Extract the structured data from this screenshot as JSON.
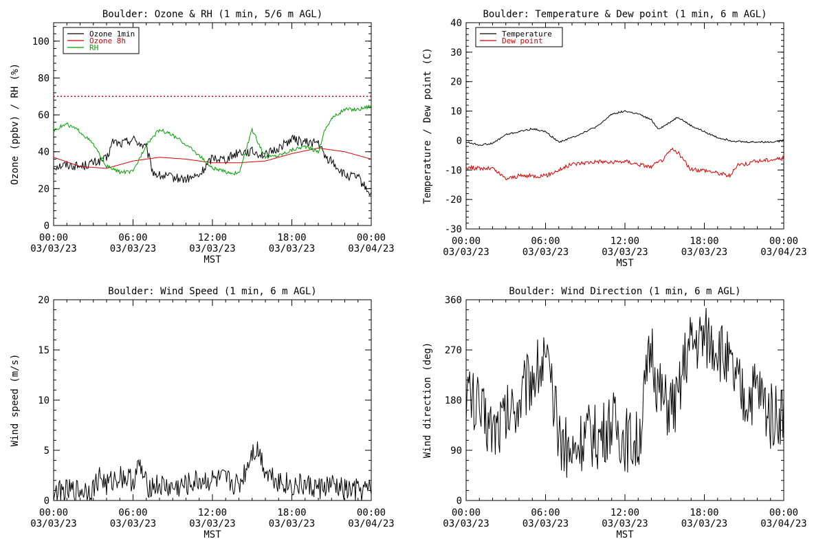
{
  "x_axis": {
    "label": "MST",
    "ticks": [
      {
        "time": "00:00",
        "date": "03/03/23"
      },
      {
        "time": "06:00",
        "date": "03/03/23"
      },
      {
        "time": "12:00",
        "date": "03/03/23"
      },
      {
        "time": "18:00",
        "date": "03/03/23"
      },
      {
        "time": "00:00",
        "date": "03/04/23"
      }
    ]
  },
  "chart_data": [
    {
      "type": "line",
      "title": "Boulder: Ozone & RH (1 min, 5/6 m AGL)",
      "ylabel": "Ozone (ppbv) / RH (%)",
      "ylim": [
        0,
        110
      ],
      "yticks": [
        0,
        20,
        40,
        60,
        80,
        100
      ],
      "xlim_hours": [
        0,
        24
      ],
      "legend": "top-left",
      "reference_line": {
        "y": 70,
        "color": "#d40000",
        "style": "dotted"
      },
      "series": [
        {
          "name": "Ozone 1min",
          "color": "#000000",
          "noise": 2.5,
          "x": [
            0,
            1,
            2,
            3,
            4,
            4.5,
            5,
            6,
            7,
            7.5,
            8,
            9,
            10,
            11,
            12,
            13,
            14,
            15,
            16,
            17,
            18,
            19,
            20,
            20.5,
            21,
            22,
            23,
            23.5,
            24
          ],
          "y": [
            32,
            33,
            32,
            34,
            36,
            46,
            44,
            47,
            42,
            29,
            27,
            26,
            25,
            27,
            37,
            36,
            40,
            40,
            38,
            42,
            47,
            45,
            45,
            37,
            35,
            27,
            26,
            21,
            17
          ]
        },
        {
          "name": "Ozone 8h",
          "color": "#d40000",
          "noise": 0,
          "x": [
            0,
            2,
            4,
            6,
            8,
            10,
            12,
            14,
            16,
            18,
            20,
            22,
            24
          ],
          "y": [
            37,
            32,
            31,
            35,
            37,
            36,
            34,
            34,
            35,
            39,
            42,
            40,
            36
          ]
        },
        {
          "name": "RH",
          "color": "#00a000",
          "noise": 1,
          "x": [
            0,
            1,
            2,
            3,
            4,
            5,
            6,
            7,
            8,
            9,
            10,
            11,
            12,
            13,
            14,
            15,
            16,
            17,
            18,
            19,
            20,
            20.5,
            21,
            22,
            23,
            24
          ],
          "y": [
            52,
            55,
            51,
            44,
            32,
            29,
            29,
            44,
            52,
            49,
            44,
            38,
            31,
            29,
            28,
            52,
            37,
            38,
            41,
            43,
            40,
            52,
            58,
            63,
            63,
            65
          ]
        }
      ]
    },
    {
      "type": "line",
      "title": "Boulder: Temperature & Dew point (1 min, 6 m AGL)",
      "ylabel": "Temperature / Dew point (C)",
      "ylim": [
        -30,
        40
      ],
      "yticks": [
        -30,
        -20,
        -10,
        0,
        10,
        20,
        30,
        40
      ],
      "xlim_hours": [
        0,
        24
      ],
      "legend": "top-left",
      "series": [
        {
          "name": "Temperature",
          "color": "#000000",
          "noise": 0.3,
          "x": [
            0,
            1,
            2,
            3,
            4,
            5,
            6,
            7,
            8,
            9,
            10,
            11,
            12,
            13,
            14,
            14.5,
            15,
            16,
            17,
            18,
            19,
            20,
            21,
            22,
            23,
            24
          ],
          "y": [
            -0.5,
            -1.5,
            -1,
            2,
            3,
            4,
            3,
            -0.5,
            1,
            3,
            5,
            9,
            10,
            9,
            7,
            4,
            5,
            8,
            5,
            3,
            1,
            0,
            -0.5,
            -0.5,
            -0.5,
            0
          ]
        },
        {
          "name": "Dew point",
          "color": "#d40000",
          "noise": 0.7,
          "x": [
            0,
            1,
            2,
            3,
            4,
            5,
            6,
            7,
            8,
            9,
            10,
            11,
            12,
            13,
            14,
            15,
            15.5,
            16,
            17,
            18,
            19,
            20,
            20.5,
            21,
            22,
            23,
            24
          ],
          "y": [
            -9,
            -9.5,
            -9.5,
            -13,
            -12,
            -12,
            -12,
            -10,
            -8,
            -7.5,
            -7,
            -7.5,
            -7,
            -8,
            -9,
            -6,
            -3,
            -4,
            -10,
            -10,
            -11,
            -12,
            -8,
            -8,
            -7,
            -6.5,
            -6
          ]
        }
      ]
    },
    {
      "type": "line",
      "title": "Boulder: Wind Speed (1 min, 6 m AGL)",
      "ylabel": "Wind speed (m/s)",
      "ylim": [
        0,
        20
      ],
      "yticks": [
        0,
        5,
        10,
        15,
        20
      ],
      "xlim_hours": [
        0,
        24
      ],
      "series": [
        {
          "color": "#000000",
          "noise": 1.2,
          "x": [
            0,
            2,
            3,
            3.5,
            4,
            5,
            6,
            6.5,
            7,
            8,
            9,
            10,
            11,
            12,
            13,
            14,
            14.5,
            15,
            15.5,
            16,
            17,
            18,
            19,
            20,
            21,
            22,
            23,
            24
          ],
          "y": [
            0.8,
            1,
            1.2,
            2.5,
            1.5,
            2.5,
            2,
            3.5,
            1.5,
            1.5,
            1.2,
            1.5,
            2,
            2,
            2,
            1.5,
            3,
            5,
            5,
            3,
            2,
            1.5,
            1.5,
            1.2,
            1.5,
            1,
            1,
            1
          ]
        }
      ]
    },
    {
      "type": "line",
      "title": "Boulder: Wind Direction (1 min, 6 m AGL)",
      "ylabel": "Wind direction (deg)",
      "ylim": [
        0,
        360
      ],
      "yticks": [
        0,
        90,
        180,
        270,
        360
      ],
      "xlim_hours": [
        0,
        24
      ],
      "series": [
        {
          "color": "#000000",
          "noise": 60,
          "x": [
            0,
            1,
            2,
            3,
            4,
            5,
            6,
            7,
            8,
            9,
            10,
            11,
            12,
            13,
            14,
            14.5,
            15,
            16,
            16.5,
            17,
            18,
            19,
            20,
            21,
            22,
            23,
            24
          ],
          "y": [
            200,
            160,
            130,
            150,
            180,
            230,
            250,
            120,
            80,
            120,
            110,
            140,
            110,
            100,
            280,
            200,
            170,
            170,
            250,
            280,
            290,
            280,
            230,
            180,
            200,
            150,
            160
          ]
        }
      ]
    }
  ]
}
